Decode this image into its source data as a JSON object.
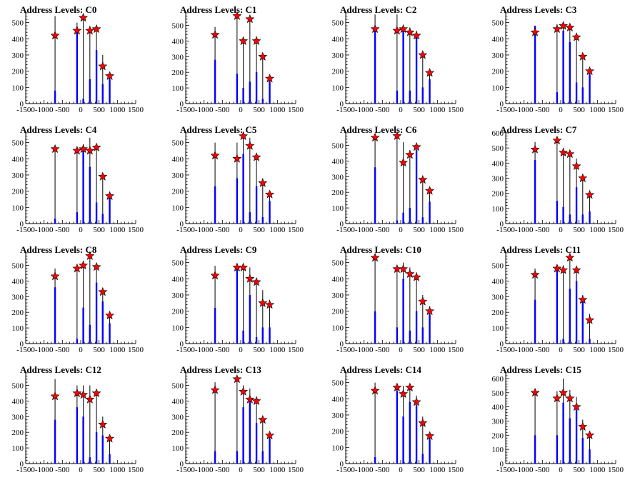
{
  "colors": {
    "marker": "#ff0000",
    "bar_blue": "#0000ff",
    "bar_black": "#000000"
  },
  "chart_data": [
    {
      "type": "bar",
      "title": "Address Levels: C0",
      "xticks": [
        "-1500",
        "-1000",
        "-500",
        "0",
        "500",
        "1000",
        "1500"
      ],
      "xlim": [
        -1500,
        1500
      ],
      "yticks": [
        "0",
        "100",
        "200",
        "300",
        "400",
        "500"
      ],
      "ylim": [
        0,
        560
      ],
      "peaks_x": [
        -700,
        -100,
        70,
        250,
        430,
        600,
        790
      ],
      "black_heights": [
        540,
        500,
        520,
        480,
        460,
        300,
        170
      ],
      "blue_heights": [
        80,
        470,
        30,
        150,
        330,
        120,
        150
      ],
      "markers": [
        420,
        450,
        530,
        450,
        460,
        230,
        170
      ]
    },
    {
      "type": "bar",
      "title": "Address Levels: C1",
      "xticks": [
        "-1500",
        "-1000",
        "-500",
        "0",
        "500",
        "1000",
        "1500"
      ],
      "xlim": [
        -1500,
        1500
      ],
      "yticks": [
        "0",
        "100",
        "200",
        "300",
        "400",
        "500"
      ],
      "ylim": [
        0,
        580
      ],
      "peaks_x": [
        -700,
        -100,
        70,
        250,
        430,
        600,
        790
      ],
      "black_heights": [
        490,
        560,
        400,
        530,
        430,
        300,
        160
      ],
      "blue_heights": [
        280,
        190,
        100,
        140,
        200,
        30,
        140
      ],
      "markers": [
        440,
        560,
        400,
        540,
        400,
        300,
        160
      ]
    },
    {
      "type": "bar",
      "title": "Address Levels: C2",
      "xticks": [
        "-1500",
        "-1000",
        "-500",
        "0",
        "500",
        "1000",
        "1500"
      ],
      "xlim": [
        -1500,
        1500
      ],
      "yticks": [
        "0",
        "100",
        "200",
        "300",
        "400",
        "500"
      ],
      "ylim": [
        0,
        560
      ],
      "peaks_x": [
        -700,
        -100,
        70,
        250,
        430,
        600,
        790
      ],
      "black_heights": [
        550,
        550,
        480,
        470,
        450,
        300,
        190
      ],
      "blue_heights": [
        450,
        80,
        450,
        80,
        430,
        100,
        150
      ],
      "markers": [
        460,
        450,
        460,
        440,
        420,
        300,
        190
      ]
    },
    {
      "type": "bar",
      "title": "Address Levels: C3",
      "xticks": [
        "-1500",
        "-1000",
        "-500",
        "0",
        "500",
        "1000",
        "1500"
      ],
      "xlim": [
        -1500,
        1500
      ],
      "yticks": [
        "0",
        "100",
        "200",
        "300",
        "400",
        "500"
      ],
      "ylim": [
        0,
        560
      ],
      "peaks_x": [
        -700,
        -100,
        70,
        250,
        430,
        600,
        790
      ],
      "black_heights": [
        480,
        490,
        500,
        490,
        420,
        300,
        200
      ],
      "blue_heights": [
        480,
        70,
        450,
        380,
        130,
        100,
        180
      ],
      "markers": [
        440,
        460,
        480,
        470,
        410,
        290,
        200
      ]
    },
    {
      "type": "bar",
      "title": "Address Levels: C4",
      "xticks": [
        "-1500",
        "-1000",
        "-500",
        "0",
        "500",
        "1000",
        "1500"
      ],
      "xlim": [
        -1500,
        1500
      ],
      "yticks": [
        "0",
        "100",
        "200",
        "300",
        "400",
        "500"
      ],
      "ylim": [
        0,
        560
      ],
      "peaks_x": [
        -700,
        -100,
        70,
        250,
        430,
        600,
        790
      ],
      "black_heights": [
        480,
        470,
        490,
        530,
        480,
        300,
        180
      ],
      "blue_heights": [
        30,
        70,
        480,
        350,
        130,
        60,
        160
      ],
      "markers": [
        460,
        450,
        460,
        450,
        470,
        290,
        170
      ]
    },
    {
      "type": "bar",
      "title": "Address Levels: C5",
      "xticks": [
        "-1500",
        "-1000",
        "-500",
        "0",
        "500",
        "1000",
        "1500"
      ],
      "xlim": [
        -1500,
        1500
      ],
      "yticks": [
        "0",
        "100",
        "200",
        "300",
        "400",
        "500"
      ],
      "ylim": [
        0,
        560
      ],
      "peaks_x": [
        -700,
        -100,
        70,
        250,
        430,
        600,
        790
      ],
      "black_heights": [
        500,
        500,
        550,
        530,
        430,
        280,
        200
      ],
      "blue_heights": [
        230,
        280,
        430,
        70,
        230,
        40,
        140
      ],
      "markers": [
        420,
        400,
        540,
        480,
        410,
        250,
        180
      ]
    },
    {
      "type": "bar",
      "title": "Address Levels: C6",
      "xticks": [
        "-1500",
        "-1000",
        "-500",
        "0",
        "500",
        "1000",
        "1500"
      ],
      "xlim": [
        -1500,
        1500
      ],
      "yticks": [
        "0",
        "100",
        "200",
        "300",
        "400",
        "500"
      ],
      "ylim": [
        0,
        580
      ],
      "peaks_x": [
        -700,
        -100,
        70,
        250,
        430,
        600,
        790
      ],
      "black_heights": [
        550,
        560,
        520,
        470,
        500,
        290,
        210
      ],
      "blue_heights": [
        360,
        20,
        70,
        100,
        470,
        40,
        140
      ],
      "markers": [
        550,
        560,
        390,
        440,
        490,
        280,
        210
      ]
    },
    {
      "type": "bar",
      "title": "Address Levels: C7",
      "xticks": [
        "-1500",
        "-1000",
        "-500",
        "0",
        "500",
        "1000",
        "1500"
      ],
      "xlim": [
        -1500,
        1500
      ],
      "yticks": [
        "0",
        "100",
        "200",
        "300",
        "400",
        "500",
        "600"
      ],
      "ylim": [
        0,
        600
      ],
      "peaks_x": [
        -700,
        -100,
        70,
        250,
        430,
        600,
        790
      ],
      "black_heights": [
        540,
        540,
        500,
        480,
        430,
        320,
        220
      ],
      "blue_heights": [
        420,
        150,
        110,
        60,
        240,
        60,
        80
      ],
      "markers": [
        490,
        550,
        470,
        460,
        380,
        300,
        190
      ]
    },
    {
      "type": "bar",
      "title": "Address Levels: C8",
      "xticks": [
        "-1500",
        "-1000",
        "-500",
        "0",
        "500",
        "1000",
        "1500"
      ],
      "xlim": [
        -1500,
        1500
      ],
      "yticks": [
        "0",
        "100",
        "200",
        "300",
        "400",
        "500"
      ],
      "ylim": [
        0,
        580
      ],
      "peaks_x": [
        -700,
        -100,
        70,
        250,
        430,
        600,
        790
      ],
      "black_heights": [
        480,
        510,
        530,
        560,
        500,
        340,
        200
      ],
      "blue_heights": [
        360,
        30,
        230,
        120,
        390,
        270,
        130
      ],
      "markers": [
        430,
        480,
        500,
        560,
        490,
        330,
        180
      ]
    },
    {
      "type": "bar",
      "title": "Address Levels: C9",
      "xticks": [
        "-1500",
        "-1000",
        "-500",
        "0",
        "500",
        "1000",
        "1500"
      ],
      "xlim": [
        -1500,
        1500
      ],
      "yticks": [
        "0",
        "100",
        "200",
        "300",
        "400",
        "500"
      ],
      "ylim": [
        0,
        560
      ],
      "peaks_x": [
        -700,
        -100,
        70,
        250,
        430,
        600,
        790
      ],
      "black_heights": [
        480,
        480,
        480,
        470,
        400,
        330,
        270
      ],
      "blue_heights": [
        220,
        460,
        80,
        300,
        40,
        100,
        100
      ],
      "markers": [
        420,
        470,
        470,
        400,
        380,
        250,
        240
      ]
    },
    {
      "type": "bar",
      "title": "Address Levels: C10",
      "xticks": [
        "-1500",
        "-1000",
        "-500",
        "0",
        "500",
        "1000",
        "1500"
      ],
      "xlim": [
        -1500,
        1500
      ],
      "yticks": [
        "0",
        "100",
        "200",
        "300",
        "400",
        "500"
      ],
      "ylim": [
        0,
        560
      ],
      "peaks_x": [
        -700,
        -100,
        70,
        250,
        430,
        600,
        790
      ],
      "black_heights": [
        540,
        470,
        500,
        470,
        440,
        300,
        230
      ],
      "blue_heights": [
        200,
        100,
        400,
        80,
        200,
        100,
        180
      ],
      "markers": [
        530,
        460,
        460,
        430,
        410,
        260,
        200
      ]
    },
    {
      "type": "bar",
      "title": "Address Levels: C11",
      "xticks": [
        "-1500",
        "-1000",
        "-500",
        "0",
        "500",
        "1000",
        "1500"
      ],
      "xlim": [
        -1500,
        1500
      ],
      "yticks": [
        "0",
        "100",
        "200",
        "300",
        "400",
        "500"
      ],
      "ylim": [
        0,
        580
      ],
      "peaks_x": [
        -700,
        -100,
        70,
        250,
        430,
        600,
        790
      ],
      "black_heights": [
        480,
        480,
        500,
        560,
        490,
        310,
        190
      ],
      "blue_heights": [
        280,
        470,
        30,
        350,
        400,
        290,
        30
      ],
      "markers": [
        440,
        480,
        470,
        550,
        470,
        280,
        150
      ]
    },
    {
      "type": "bar",
      "title": "Address Levels: C12",
      "xticks": [
        "-1500",
        "-1000",
        "-500",
        "0",
        "500",
        "1000",
        "1500"
      ],
      "xlim": [
        -1500,
        1500
      ],
      "yticks": [
        "0",
        "100",
        "200",
        "300",
        "400",
        "500"
      ],
      "ylim": [
        0,
        580
      ],
      "peaks_x": [
        -700,
        -100,
        70,
        250,
        430,
        600,
        790
      ],
      "black_heights": [
        540,
        500,
        500,
        500,
        470,
        300,
        180
      ],
      "blue_heights": [
        280,
        360,
        300,
        40,
        200,
        180,
        60
      ],
      "markers": [
        430,
        450,
        440,
        410,
        450,
        250,
        160
      ]
    },
    {
      "type": "bar",
      "title": "Address Levels: C13",
      "xticks": [
        "-1500",
        "-1000",
        "-500",
        "0",
        "500",
        "1000",
        "1500"
      ],
      "xlim": [
        -1500,
        1500
      ],
      "yticks": [
        "0",
        "100",
        "200",
        "300",
        "400",
        "500"
      ],
      "ylim": [
        0,
        580
      ],
      "peaks_x": [
        -700,
        -100,
        70,
        250,
        430,
        600,
        790
      ],
      "black_heights": [
        520,
        550,
        500,
        480,
        430,
        300,
        200
      ],
      "blue_heights": [
        80,
        80,
        360,
        400,
        260,
        80,
        160
      ],
      "markers": [
        470,
        540,
        460,
        410,
        400,
        280,
        180
      ]
    },
    {
      "type": "bar",
      "title": "Address Levels: C14",
      "xticks": [
        "-1500",
        "-1000",
        "-500",
        "0",
        "500",
        "1000",
        "1500"
      ],
      "xlim": [
        -1500,
        1500
      ],
      "yticks": [
        "0",
        "100",
        "200",
        "300",
        "400",
        "500"
      ],
      "ylim": [
        0,
        560
      ],
      "peaks_x": [
        -700,
        -100,
        70,
        250,
        430,
        600,
        790
      ],
      "black_heights": [
        500,
        480,
        480,
        480,
        420,
        290,
        190
      ],
      "blue_heights": [
        40,
        450,
        290,
        380,
        360,
        60,
        150
      ],
      "markers": [
        450,
        470,
        430,
        470,
        380,
        250,
        170
      ]
    },
    {
      "type": "bar",
      "title": "Address Levels: C15",
      "xticks": [
        "-1500",
        "-1000",
        "-500",
        "0",
        "500",
        "1000",
        "1500"
      ],
      "xlim": [
        -1500,
        1500
      ],
      "yticks": [
        "0",
        "100",
        "200",
        "300",
        "400",
        "500",
        "600"
      ],
      "ylim": [
        0,
        640
      ],
      "peaks_x": [
        -700,
        -100,
        70,
        250,
        430,
        600,
        790
      ],
      "black_heights": [
        530,
        510,
        600,
        520,
        470,
        310,
        230
      ],
      "blue_heights": [
        200,
        200,
        430,
        320,
        380,
        180,
        100
      ],
      "markers": [
        500,
        460,
        500,
        460,
        400,
        260,
        200
      ]
    }
  ]
}
